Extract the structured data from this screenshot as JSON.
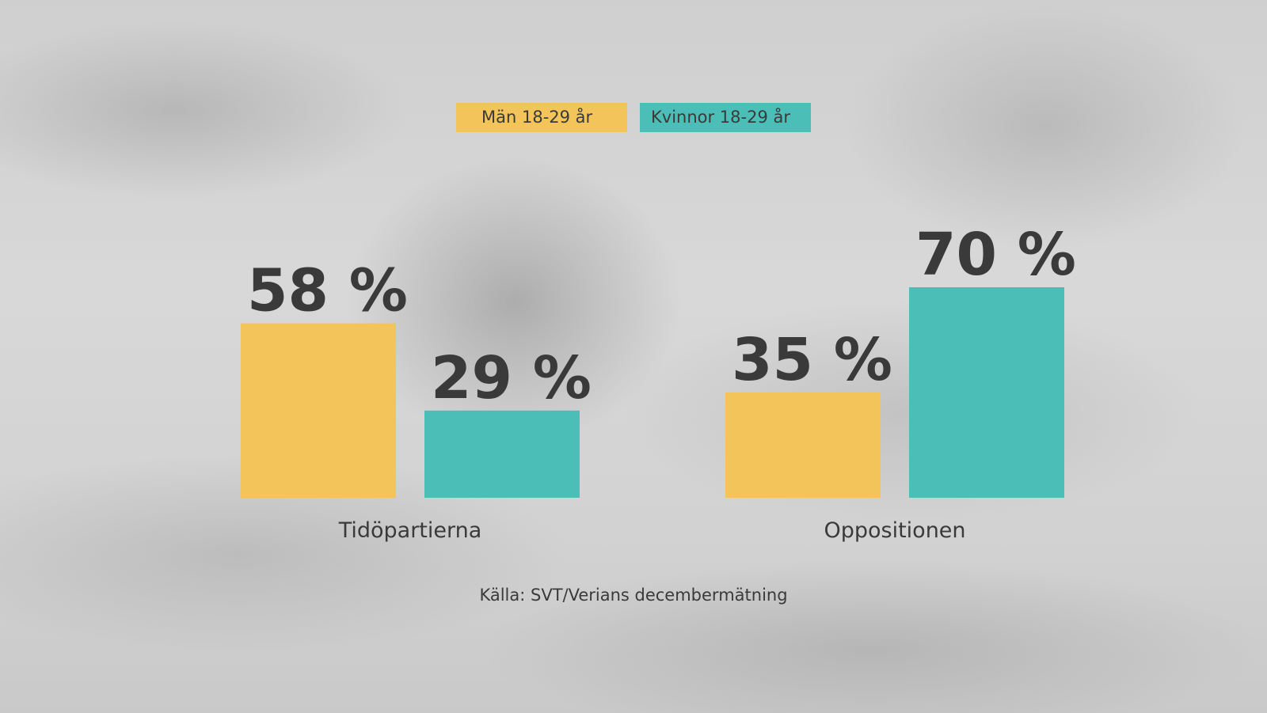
{
  "chart_data": {
    "type": "bar",
    "categories": [
      "Tidöpartierna",
      "Oppositionen"
    ],
    "series": [
      {
        "name": "Män 18-29 år",
        "color": "#f2c45a",
        "values": [
          58,
          35
        ],
        "labels": [
          "58 %",
          "35 %"
        ]
      },
      {
        "name": "Kvinnor 18-29 år",
        "color": "#4bbfb7",
        "values": [
          29,
          70
        ],
        "labels": [
          "29 %",
          "70 %"
        ]
      }
    ],
    "ylim": [
      0,
      100
    ],
    "grid": false,
    "legend_position": "top-center",
    "source": "Källa: SVT/Verians decembermätning"
  }
}
